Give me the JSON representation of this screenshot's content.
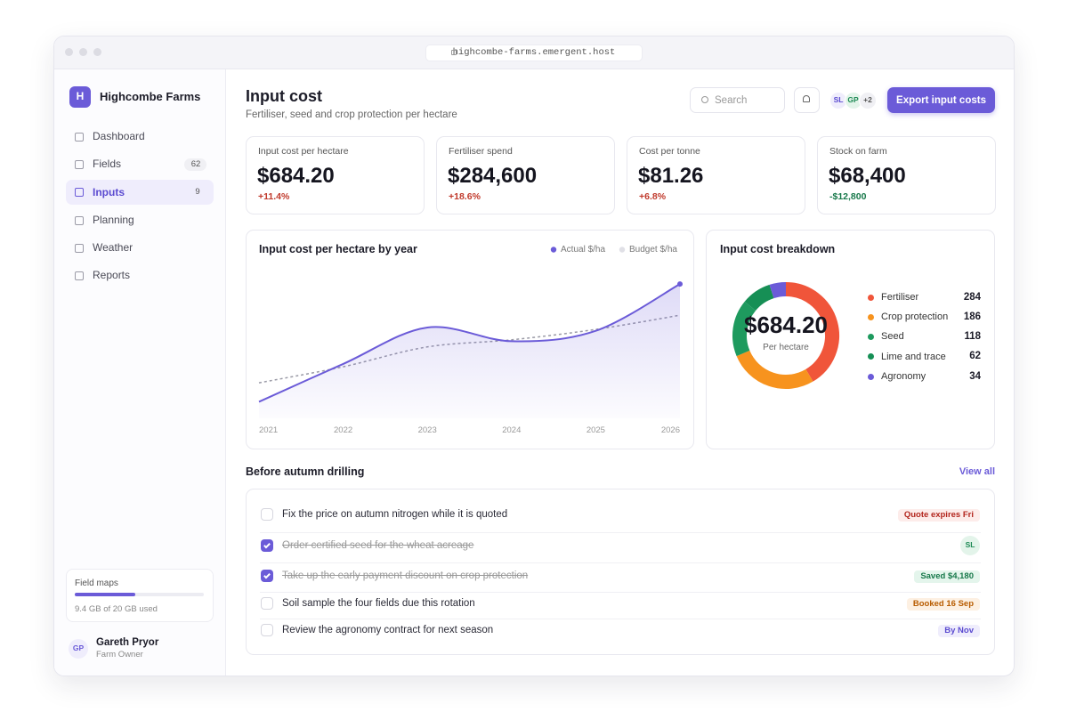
{
  "browser": {
    "url": "highcombe-farms.emergent.host"
  },
  "sidebar": {
    "brand": {
      "logo": "H",
      "name": "Highcombe Farms"
    },
    "nav": [
      {
        "label": "Dashboard"
      },
      {
        "label": "Fields",
        "count": 62
      },
      {
        "label": "Inputs",
        "count": 9,
        "active": true
      },
      {
        "label": "Planning"
      },
      {
        "label": "Weather"
      },
      {
        "label": "Reports"
      }
    ],
    "storage": {
      "title": "Field maps",
      "usage": "9.4 GB of 20 GB used",
      "used": 9.4,
      "total": 20
    },
    "user": {
      "initials": "GP",
      "name": "Gareth Pryor",
      "role": "Farm Owner"
    }
  },
  "header": {
    "title": "Input cost",
    "subtitle": "Fertiliser, seed and crop protection per hectare",
    "search": "Search",
    "avatars": [
      "SL",
      "GP",
      "+2"
    ],
    "button": "Export input costs"
  },
  "kpis": [
    {
      "label": "Input cost per hectare",
      "value": "$684.20",
      "delta": "+11.4%"
    },
    {
      "label": "Fertiliser spend",
      "value": "$284,600",
      "delta": "+18.6%"
    },
    {
      "label": "Cost per tonne",
      "value": "$81.26",
      "delta": "+6.8%"
    },
    {
      "label": "Stock on farm",
      "value": "$68,400",
      "delta": "-$12,800"
    }
  ],
  "chart_data": [
    {
      "type": "line",
      "title": "Input cost per hectare by year",
      "categories": [
        "2021",
        "2022",
        "2023",
        "2024",
        "2025",
        "2026"
      ],
      "series": [
        {
          "name": "Actual $/ha",
          "color": "#6b5bd8",
          "values": [
            435,
            515,
            592,
            563,
            585,
            684
          ],
          "area": true
        },
        {
          "name": "Budget $/ha",
          "color": "#9a9aa6",
          "values": [
            475,
            509,
            551,
            566,
            588,
            618
          ],
          "dashed": true
        }
      ],
      "ylim": [
        400,
        720
      ]
    },
    {
      "type": "pie",
      "donut": true,
      "title": "Input cost breakdown",
      "center_label": "$684.20",
      "center_sublabel": "Per hectare",
      "categories": [
        "Fertiliser",
        "Crop protection",
        "Seed",
        "Lime and trace",
        "Agronomy"
      ],
      "values": [
        284,
        186,
        118,
        62,
        34
      ],
      "colors": [
        "#f0553a",
        "#f7931e",
        "#1e9a5e",
        "#168f55",
        "#6b5bd8"
      ]
    }
  ],
  "tasks": {
    "title": "Before autumn drilling",
    "link": "View all",
    "items": [
      {
        "text": "Fix the price on autumn nitrogen while it is quoted",
        "done": false,
        "badge": "Quote expires Fri",
        "tone": "red"
      },
      {
        "text": "Order certified seed for the wheat acreage",
        "done": true,
        "badge": "SL",
        "tone": "avatar"
      },
      {
        "text": "Take up the early payment discount on crop protection",
        "done": true,
        "badge": "Saved $4,180",
        "tone": "green"
      },
      {
        "text": "Soil sample the four fields due this rotation",
        "done": false,
        "badge": "Booked 16 Sep",
        "tone": "orange"
      },
      {
        "text": "Review the agronomy contract for next season",
        "done": false,
        "badge": "By Nov",
        "tone": "purple"
      }
    ]
  }
}
